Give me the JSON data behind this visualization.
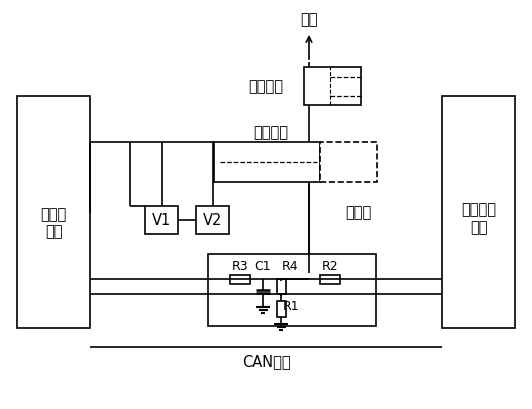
{
  "bg_color": "#ffffff",
  "lc": "#000000",
  "title": "电源",
  "label_hydrogen_1": "氢管理",
  "label_hydrogen_2": "单元",
  "label_vehicle_1": "整车控制",
  "label_vehicle_2": "单元",
  "label_crash": "碰撞开关",
  "label_estop": "急停开关",
  "label_safety": "安全线",
  "label_can": "CAN总线",
  "label_v1": "V1",
  "label_v2": "V2",
  "label_r1": "R1",
  "label_r2": "R2",
  "label_r3": "R3",
  "label_r4": "R4",
  "label_c1": "C1",
  "fs": 10.5,
  "fs_small": 9,
  "lw": 1.2
}
